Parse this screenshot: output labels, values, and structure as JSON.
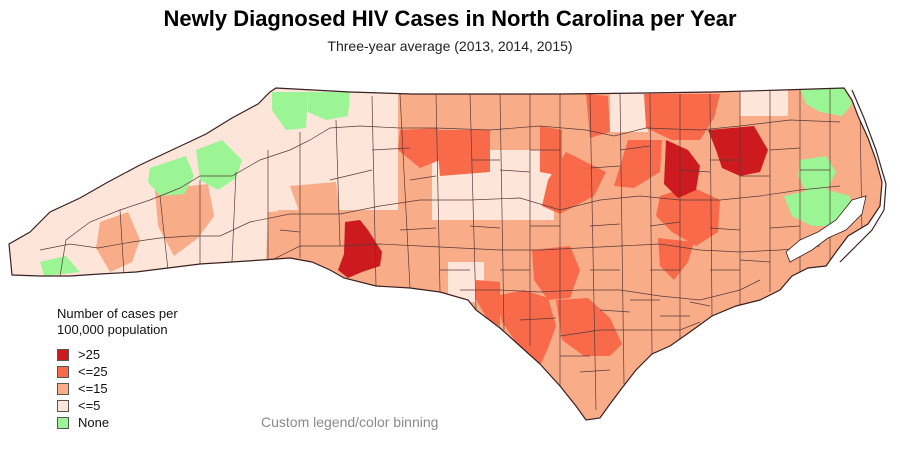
{
  "title": "Newly Diagnosed HIV Cases in North Carolina per Year",
  "subtitle": "Three-year average (2013, 2014, 2015)",
  "legend": {
    "title": "Number of cases per 100,000 population",
    "items": [
      {
        "label": ">25",
        "color": "#cc1a1f"
      },
      {
        "label": "<=25",
        "color": "#f96a4b"
      },
      {
        "label": "<=15",
        "color": "#f8ad88"
      },
      {
        "label": "<=5",
        "color": "#fde5d9"
      },
      {
        "label": "None",
        "color": "#9cf594"
      }
    ]
  },
  "footnote": "Custom legend/color binning",
  "colors": {
    "border": "#5a3a3a",
    "outline": "#3a2020"
  }
}
